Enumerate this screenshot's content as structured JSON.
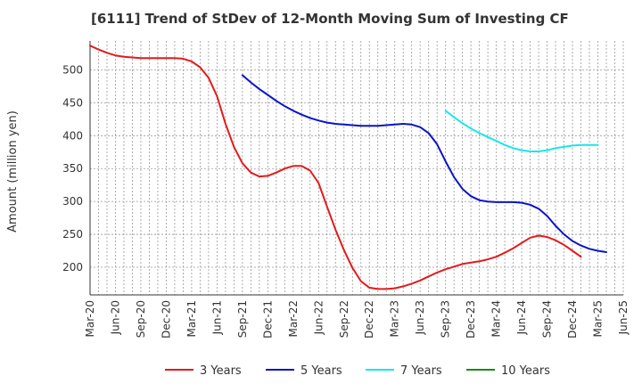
{
  "chart_data": {
    "type": "line",
    "title": "[6111]  Trend of StDev of 12-Month Moving Sum of Investing CF",
    "xlabel": "",
    "ylabel": "Amount (million yen)",
    "ylim": [
      158,
      544
    ],
    "yticks": [
      200,
      250,
      300,
      350,
      400,
      450,
      500
    ],
    "x_tick_labels": [
      "Mar-20",
      "Jun-20",
      "Sep-20",
      "Dec-20",
      "Mar-21",
      "Jun-21",
      "Sep-21",
      "Dec-21",
      "Mar-22",
      "Jun-22",
      "Sep-22",
      "Dec-22",
      "Mar-23",
      "Jun-23",
      "Sep-23",
      "Dec-23",
      "Mar-24",
      "Jun-24",
      "Sep-24",
      "Dec-24",
      "Mar-25",
      "Jun-25"
    ],
    "grid": true,
    "legend_position": "bottom",
    "series": [
      {
        "name": "3 Years",
        "color": "#e31a1c",
        "start_index": 0,
        "values": [
          537,
          531,
          526,
          522,
          520,
          519,
          518,
          518,
          518,
          518,
          518,
          517,
          513,
          504,
          488,
          460,
          418,
          383,
          358,
          344,
          338,
          339,
          344,
          350,
          354,
          354,
          347,
          328,
          292,
          257,
          226,
          199,
          179,
          169,
          167,
          167,
          168,
          171,
          175,
          180,
          186,
          192,
          197,
          201,
          205,
          207,
          209,
          212,
          216,
          222,
          229,
          237,
          245,
          248,
          246,
          241,
          234,
          225,
          216
        ]
      },
      {
        "name": "5 Years",
        "color": "#0a14c8",
        "start_index": 18,
        "values": [
          492,
          481,
          471,
          462,
          453,
          445,
          438,
          432,
          427,
          423,
          420,
          418,
          417,
          416,
          415,
          415,
          415,
          416,
          417,
          418,
          417,
          413,
          404,
          387,
          361,
          337,
          319,
          308,
          302,
          300,
          299,
          299,
          299,
          298,
          295,
          289,
          278,
          263,
          250,
          240,
          233,
          228,
          225,
          223
        ]
      },
      {
        "name": "7 Years",
        "color": "#17e6ef",
        "start_index": 42,
        "values": [
          438,
          428,
          419,
          411,
          404,
          398,
          392,
          386,
          381,
          378,
          376,
          376,
          378,
          381,
          383,
          385,
          386,
          386,
          386
        ]
      },
      {
        "name": "10 Years",
        "color": "#1a8a1a",
        "start_index": 0,
        "values": []
      }
    ]
  }
}
